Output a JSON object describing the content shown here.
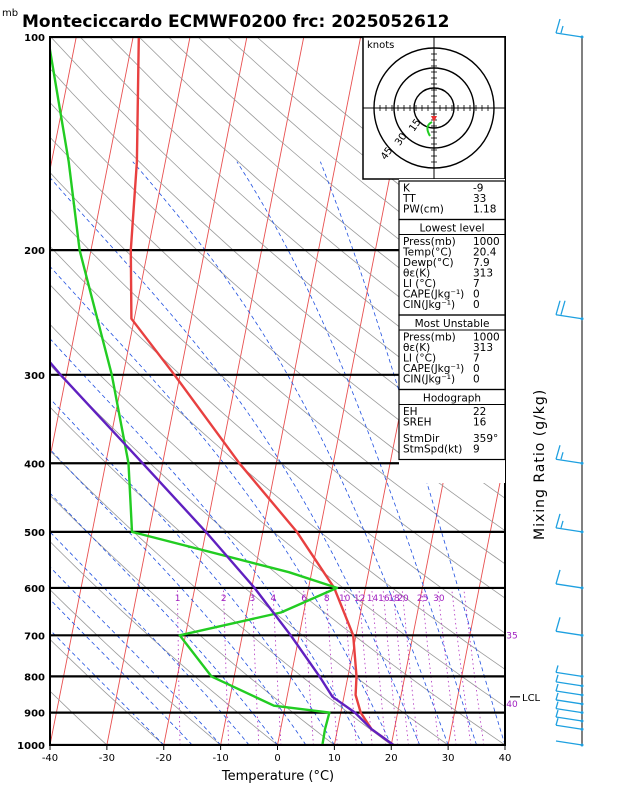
{
  "units_label": "mb",
  "title": "Monteciccardo ECMWF0200  frc: 2025052612",
  "chart_data": {
    "type": "line",
    "diagram": "skew-T log-p",
    "x_axis": {
      "label": "Temperature (°C)",
      "ticks": [
        -40,
        -30,
        -20,
        -10,
        0,
        10,
        20,
        30,
        40
      ],
      "range": [
        -40,
        40
      ]
    },
    "y_axis": {
      "unit": "mb",
      "ticks": [
        100,
        200,
        300,
        400,
        500,
        600,
        700,
        800,
        900,
        1000
      ],
      "range": [
        1000,
        100
      ],
      "scale": "log"
    },
    "right_axis_label": "Mixing Ratio (g/kg)",
    "mixing_ratio_labels": [
      "1",
      "2",
      "3",
      "4",
      "6",
      "8",
      "10",
      "12",
      "14",
      "16",
      "18",
      "20",
      "25",
      "30",
      "35",
      "40"
    ],
    "series": [
      {
        "kind": "temperature",
        "color": "#e84040",
        "points": [
          [
            1000,
            20.4
          ],
          [
            950,
            16.0
          ],
          [
            900,
            13.5
          ],
          [
            850,
            12.0
          ],
          [
            800,
            11.5
          ],
          [
            700,
            9.5
          ],
          [
            600,
            4.5
          ],
          [
            500,
            -4.0
          ],
          [
            400,
            -16.5
          ],
          [
            300,
            -31.0
          ],
          [
            250,
            -40.5
          ],
          [
            200,
            -43.0
          ],
          [
            150,
            -45.0
          ],
          [
            100,
            -49.0
          ]
        ]
      },
      {
        "kind": "dewpoint",
        "color": "#22cc22",
        "points": [
          [
            1000,
            7.9
          ],
          [
            950,
            7.8
          ],
          [
            900,
            8.0
          ],
          [
            880,
            -2.0
          ],
          [
            800,
            -14.0
          ],
          [
            700,
            -21.0
          ],
          [
            650,
            -4.0
          ],
          [
            600,
            5.0
          ],
          [
            570,
            -4.0
          ],
          [
            500,
            -33.0
          ],
          [
            400,
            -36.0
          ],
          [
            300,
            -42.0
          ],
          [
            200,
            -52.0
          ],
          [
            150,
            -57.0
          ],
          [
            100,
            -65.0
          ]
        ]
      },
      {
        "kind": "parcel",
        "color": "#6020c0",
        "points": [
          [
            1000,
            20.4
          ],
          [
            950,
            16.0
          ],
          [
            900,
            12.5
          ],
          [
            855,
            8.0
          ],
          [
            800,
            5.0
          ],
          [
            700,
            -1.5
          ],
          [
            600,
            -9.5
          ],
          [
            500,
            -20.0
          ],
          [
            400,
            -33.5
          ],
          [
            300,
            -51.0
          ],
          [
            200,
            -74.0
          ],
          [
            150,
            -90.0
          ],
          [
            100,
            -109.0
          ]
        ]
      }
    ],
    "lcl": {
      "label": "LCL",
      "pressure": 855
    },
    "wind_barbs": [
      {
        "pressure": 1000,
        "speed_kt": 3
      },
      {
        "pressure": 950,
        "speed_kt": 5
      },
      {
        "pressure": 925,
        "speed_kt": 5
      },
      {
        "pressure": 900,
        "speed_kt": 5
      },
      {
        "pressure": 875,
        "speed_kt": 5
      },
      {
        "pressure": 850,
        "speed_kt": 5
      },
      {
        "pressure": 825,
        "speed_kt": 5
      },
      {
        "pressure": 800,
        "speed_kt": 5
      },
      {
        "pressure": 700,
        "speed_kt": 10
      },
      {
        "pressure": 600,
        "speed_kt": 10
      },
      {
        "pressure": 500,
        "speed_kt": 15
      },
      {
        "pressure": 400,
        "speed_kt": 15
      },
      {
        "pressure": 250,
        "speed_kt": 20
      },
      {
        "pressure": 100,
        "speed_kt": 15
      }
    ],
    "hodograph": {
      "unit_label": "knots",
      "rings_kt": [
        15,
        30,
        45
      ],
      "ring_labels": [
        "15",
        "30",
        "45"
      ]
    }
  },
  "indices": {
    "top": [
      {
        "k": "K",
        "v": "-9"
      },
      {
        "k": "TT",
        "v": "33"
      },
      {
        "k": "PW(cm)",
        "v": "1.18"
      }
    ],
    "lowest_level_title": "Lowest level",
    "lowest_level": [
      {
        "k": "Press(mb)",
        "v": "1000"
      },
      {
        "k": "Temp(°C)",
        "v": "20.4"
      },
      {
        "k": "Dewp(°C)",
        "v": "7.9"
      },
      {
        "k": "θε(K)",
        "v": "313"
      },
      {
        "k": "LI (°C)",
        "v": "7"
      },
      {
        "k": "CAPE(Jkg⁻¹)",
        "v": "0"
      },
      {
        "k": "CIN(Jkg⁻¹)",
        "v": "0"
      }
    ],
    "most_unstable_title": "Most Unstable",
    "most_unstable": [
      {
        "k": "Press(mb)",
        "v": "1000"
      },
      {
        "k": "θε(K)",
        "v": "313"
      },
      {
        "k": "LI (°C)",
        "v": "7"
      },
      {
        "k": "CAPE(Jkg⁻¹)",
        "v": "0"
      },
      {
        "k": "CIN(Jkg⁻¹)",
        "v": "0"
      }
    ],
    "hodograph_title": "Hodograph",
    "hodograph": [
      {
        "k": "EH",
        "v": "22"
      },
      {
        "k": "SREH",
        "v": "16"
      },
      {
        "k": "StmDir",
        "v": "359°"
      },
      {
        "k": "StmSpd(kt)",
        "v": "9"
      }
    ]
  }
}
